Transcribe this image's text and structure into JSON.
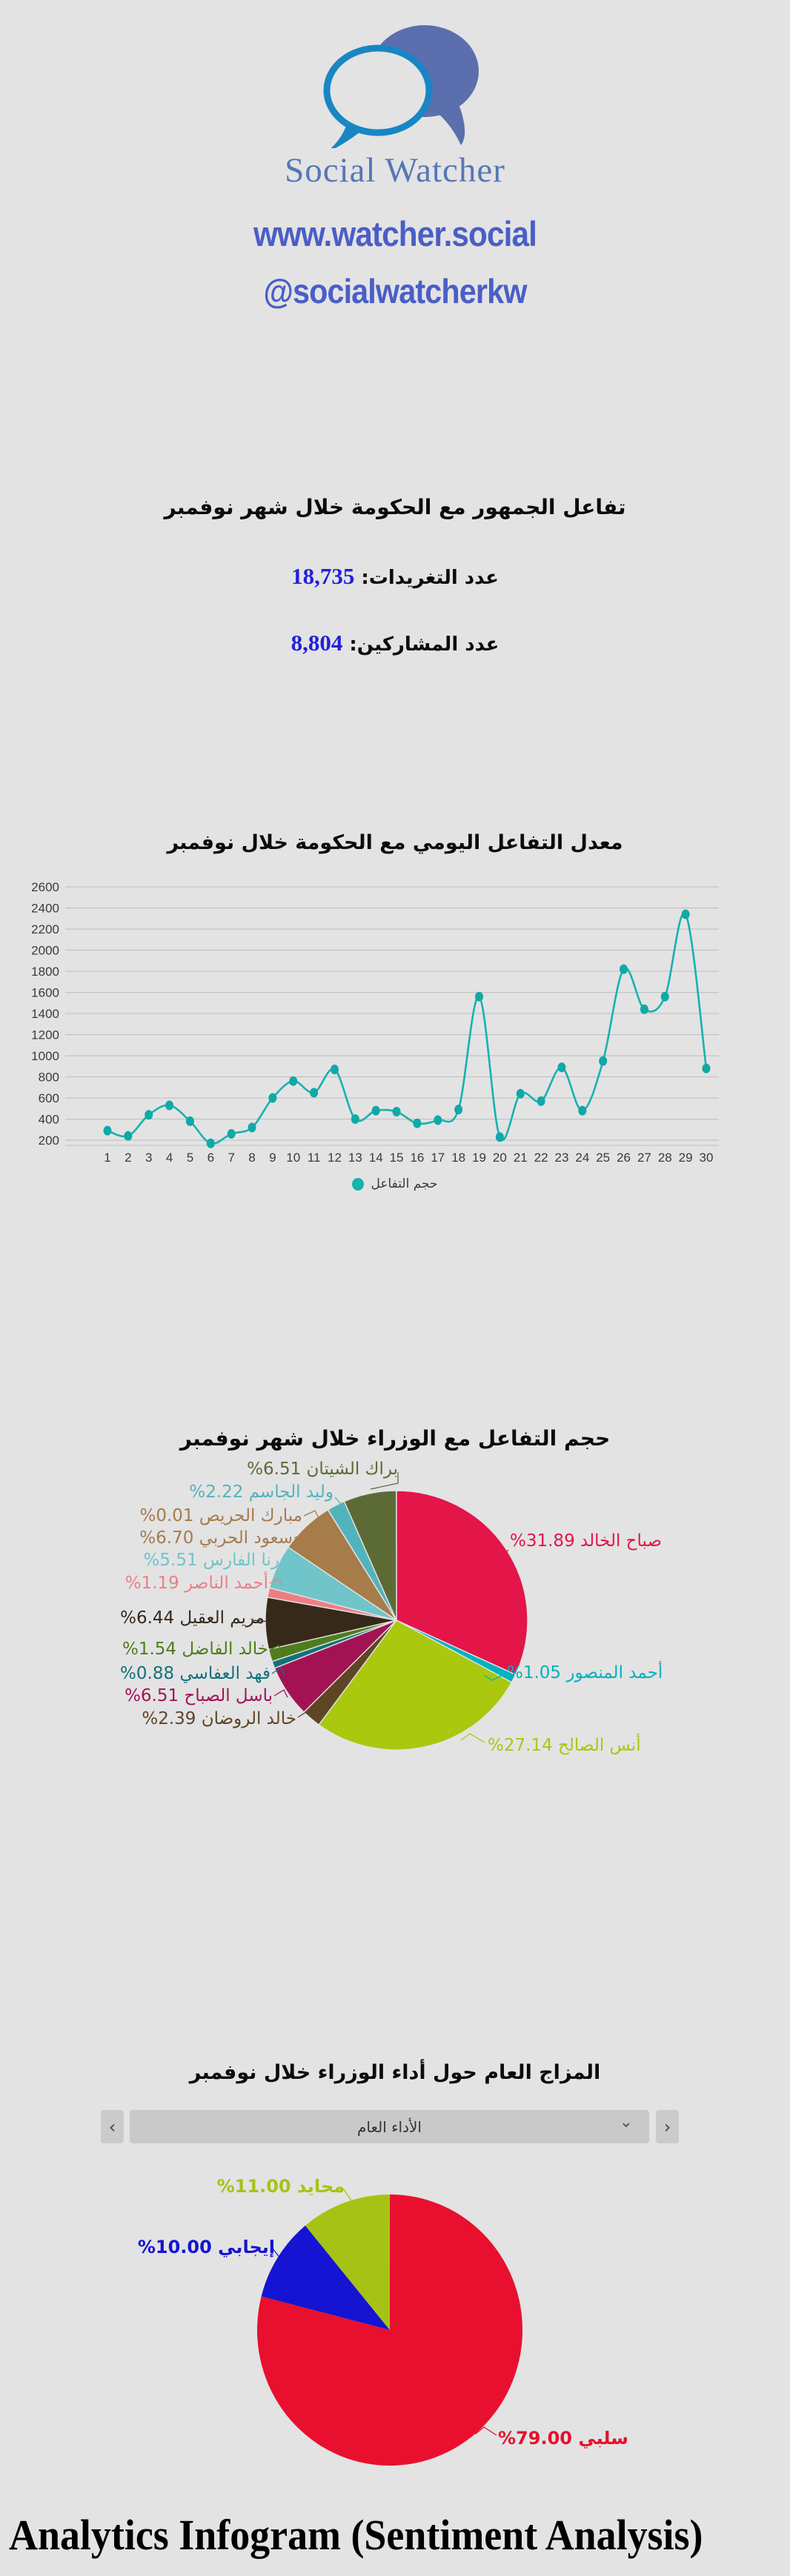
{
  "background": "#e3e3e4",
  "header": {
    "logo_icon": "speech-bubbles-icon",
    "brand": "Social Watcher",
    "brand_color": "#5577b5",
    "website": "www.watcher.social",
    "handle": "@socialwatcherkw",
    "link_color": "#4a5ec6"
  },
  "summary": {
    "title": "تفاعل الجمهور مع الحكومة خلال شهر نوفمبر",
    "stats": [
      {
        "label": "عدد التغريدات:",
        "value": "18,735"
      },
      {
        "label": "عدد المشاركين:",
        "value": "8,804"
      }
    ],
    "value_color": "#2121dc"
  },
  "chart_data": [
    {
      "type": "line",
      "title": "معدل التفاعل اليومي مع الحكومة خلال نوفمبر",
      "x": [
        1,
        2,
        3,
        4,
        5,
        6,
        7,
        8,
        9,
        10,
        11,
        12,
        13,
        14,
        15,
        16,
        17,
        18,
        19,
        20,
        21,
        22,
        23,
        24,
        25,
        26,
        27,
        28,
        29,
        30
      ],
      "series": [
        {
          "name": "حجم التفاعل",
          "color": "#16b2ae",
          "values": [
            290,
            240,
            440,
            530,
            380,
            170,
            260,
            320,
            600,
            760,
            650,
            870,
            400,
            480,
            470,
            360,
            390,
            490,
            1560,
            230,
            640,
            570,
            890,
            480,
            950,
            1820,
            1440,
            1560,
            2340,
            880
          ]
        }
      ],
      "ylim": [
        0,
        2600
      ],
      "ytick_step": 200,
      "grid": true,
      "legend_position": "bottom"
    },
    {
      "type": "pie",
      "title": "حجم التفاعل مع الوزراء خلال شهر نوفمبر",
      "slices": [
        {
          "name": "صباح الخالد",
          "value": 31.89,
          "color": "#e31549"
        },
        {
          "name": "أحمد المنصور",
          "value": 1.05,
          "color": "#00b2bf"
        },
        {
          "name": "أنس الصالح",
          "value": 27.14,
          "color": "#a9c80e"
        },
        {
          "name": "خالد الروضان",
          "value": 2.39,
          "color": "#5e4526"
        },
        {
          "name": "باسل الصباح",
          "value": 6.51,
          "color": "#a31353"
        },
        {
          "name": "فهد العفاسي",
          "value": 0.88,
          "color": "#15707a"
        },
        {
          "name": "خالد الفاضل",
          "value": 1.54,
          "color": "#4f7d1d"
        },
        {
          "name": "مريم العقيل",
          "value": 6.44,
          "color": "#37291a"
        },
        {
          "name": "أحمد الناصر",
          "value": 1.19,
          "color": "#ef7e84"
        },
        {
          "name": "رنا الفارس",
          "value": 5.51,
          "color": "#6fc5c9"
        },
        {
          "name": "سعود الحربي",
          "value": 6.7,
          "color": "#a67c4b"
        },
        {
          "name": "مبارك الحريص",
          "value": 0.01,
          "color": "#a67c4b"
        },
        {
          "name": "وليد الجاسم",
          "value": 2.22,
          "color": "#53b3bc"
        },
        {
          "name": "براك الشيتان",
          "value": 6.51,
          "color": "#5c6b36"
        }
      ]
    },
    {
      "type": "pie",
      "title": "المزاج العام حول أداء الوزراء خلال نوفمبر",
      "slices": [
        {
          "name": "سلبي",
          "value": 79.0,
          "color": "#e8102e"
        },
        {
          "name": "إيجابي",
          "value": 10.0,
          "color": "#1414d2"
        },
        {
          "name": "محايد",
          "value": 11.0,
          "color": "#a6c315"
        }
      ]
    }
  ],
  "sentiment_controls": {
    "dropdown_value": "الأداء العام",
    "dropdown_chevron": "⌄",
    "prev_label": "‹",
    "next_label": "›"
  },
  "footer": {
    "text": "Analytics Infogram (Sentiment Analysis)"
  }
}
